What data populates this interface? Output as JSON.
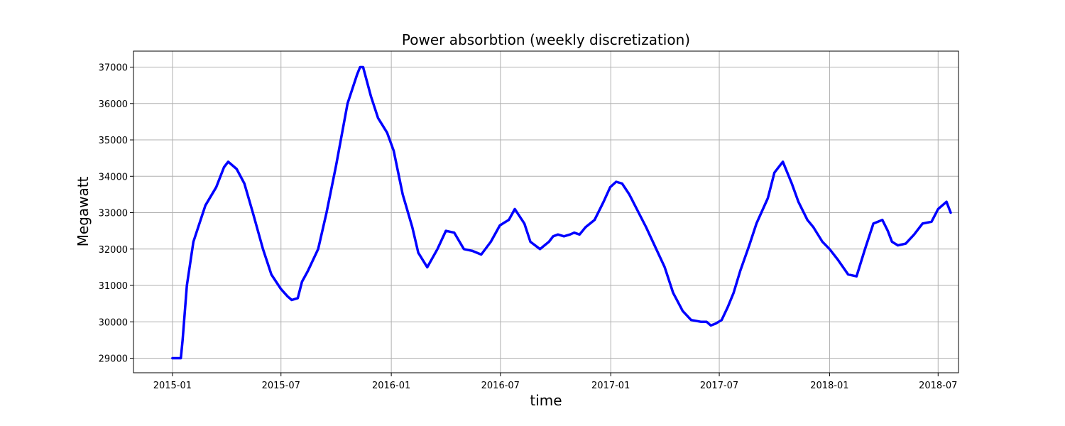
{
  "chart_data": {
    "type": "line",
    "title": "Power absorbtion (weekly discretization)",
    "xlabel": "time",
    "ylabel": "Megawatt",
    "xlim": [
      "2014-10-28",
      "2018-08-04"
    ],
    "ylim": [
      28600,
      37440
    ],
    "grid": true,
    "x_ticks": [
      "2015-01",
      "2015-07",
      "2016-01",
      "2016-07",
      "2017-01",
      "2017-07",
      "2018-01",
      "2018-07"
    ],
    "y_ticks": [
      29000,
      30000,
      31000,
      32000,
      33000,
      34000,
      35000,
      36000,
      37000
    ],
    "series": [
      {
        "color": "#0000ff",
        "points": [
          [
            "2015-01-01",
            29000
          ],
          [
            "2015-01-15",
            29000
          ],
          [
            "2015-01-18",
            29500
          ],
          [
            "2015-01-25",
            31000
          ],
          [
            "2015-02-05",
            32200
          ],
          [
            "2015-02-25",
            33200
          ],
          [
            "2015-03-15",
            33700
          ],
          [
            "2015-03-28",
            34250
          ],
          [
            "2015-04-04",
            34400
          ],
          [
            "2015-04-18",
            34200
          ],
          [
            "2015-05-01",
            33800
          ],
          [
            "2015-05-15",
            33000
          ],
          [
            "2015-06-01",
            32000
          ],
          [
            "2015-06-15",
            31300
          ],
          [
            "2015-07-01",
            30900
          ],
          [
            "2015-07-12",
            30700
          ],
          [
            "2015-07-19",
            30600
          ],
          [
            "2015-07-29",
            30650
          ],
          [
            "2015-08-05",
            31100
          ],
          [
            "2015-08-15",
            31400
          ],
          [
            "2015-09-01",
            32000
          ],
          [
            "2015-09-15",
            33000
          ],
          [
            "2015-10-01",
            34300
          ],
          [
            "2015-10-20",
            36000
          ],
          [
            "2015-11-05",
            36800
          ],
          [
            "2015-11-10",
            37000
          ],
          [
            "2015-11-15",
            37000
          ],
          [
            "2015-11-28",
            36200
          ],
          [
            "2015-12-10",
            35600
          ],
          [
            "2015-12-25",
            35200
          ],
          [
            "2016-01-05",
            34700
          ],
          [
            "2016-01-20",
            33500
          ],
          [
            "2016-02-05",
            32600
          ],
          [
            "2016-02-15",
            31900
          ],
          [
            "2016-03-01",
            31500
          ],
          [
            "2016-03-18",
            32000
          ],
          [
            "2016-04-01",
            32500
          ],
          [
            "2016-04-15",
            32450
          ],
          [
            "2016-05-01",
            32000
          ],
          [
            "2016-05-15",
            31950
          ],
          [
            "2016-05-30",
            31850
          ],
          [
            "2016-06-15",
            32200
          ],
          [
            "2016-06-30",
            32650
          ],
          [
            "2016-07-10",
            32750
          ],
          [
            "2016-07-15",
            32800
          ],
          [
            "2016-07-25",
            33100
          ],
          [
            "2016-08-10",
            32700
          ],
          [
            "2016-08-20",
            32200
          ],
          [
            "2016-09-05",
            32000
          ],
          [
            "2016-09-20",
            32200
          ],
          [
            "2016-09-27",
            32350
          ],
          [
            "2016-10-05",
            32400
          ],
          [
            "2016-10-15",
            32350
          ],
          [
            "2016-10-25",
            32400
          ],
          [
            "2016-11-01",
            32450
          ],
          [
            "2016-11-10",
            32400
          ],
          [
            "2016-11-20",
            32600
          ],
          [
            "2016-12-05",
            32800
          ],
          [
            "2016-12-20",
            33300
          ],
          [
            "2016-12-31",
            33700
          ],
          [
            "2017-01-10",
            33850
          ],
          [
            "2017-01-20",
            33800
          ],
          [
            "2017-02-01",
            33500
          ],
          [
            "2017-02-15",
            33050
          ],
          [
            "2017-03-01",
            32600
          ],
          [
            "2017-03-15",
            32100
          ],
          [
            "2017-04-01",
            31500
          ],
          [
            "2017-04-15",
            30800
          ],
          [
            "2017-05-01",
            30300
          ],
          [
            "2017-05-15",
            30050
          ],
          [
            "2017-06-01",
            30000
          ],
          [
            "2017-06-10",
            30000
          ],
          [
            "2017-06-17",
            29900
          ],
          [
            "2017-06-25",
            29950
          ],
          [
            "2017-07-05",
            30050
          ],
          [
            "2017-07-15",
            30400
          ],
          [
            "2017-07-25",
            30800
          ],
          [
            "2017-08-05",
            31400
          ],
          [
            "2017-08-20",
            32100
          ],
          [
            "2017-09-01",
            32700
          ],
          [
            "2017-09-20",
            33400
          ],
          [
            "2017-10-01",
            34100
          ],
          [
            "2017-10-15",
            34400
          ],
          [
            "2017-10-30",
            33800
          ],
          [
            "2017-11-10",
            33300
          ],
          [
            "2017-11-25",
            32800
          ],
          [
            "2017-12-05",
            32600
          ],
          [
            "2017-12-20",
            32200
          ],
          [
            "2018-01-01",
            32000
          ],
          [
            "2018-01-15",
            31700
          ],
          [
            "2018-02-01",
            31300
          ],
          [
            "2018-02-15",
            31250
          ],
          [
            "2018-03-01",
            32000
          ],
          [
            "2018-03-15",
            32700
          ],
          [
            "2018-03-30",
            32800
          ],
          [
            "2018-04-08",
            32500
          ],
          [
            "2018-04-15",
            32200
          ],
          [
            "2018-04-25",
            32100
          ],
          [
            "2018-05-08",
            32150
          ],
          [
            "2018-05-22",
            32400
          ],
          [
            "2018-06-05",
            32700
          ],
          [
            "2018-06-20",
            32750
          ],
          [
            "2018-07-01",
            33100
          ],
          [
            "2018-07-15",
            33300
          ],
          [
            "2018-07-22",
            33000
          ]
        ]
      }
    ]
  }
}
